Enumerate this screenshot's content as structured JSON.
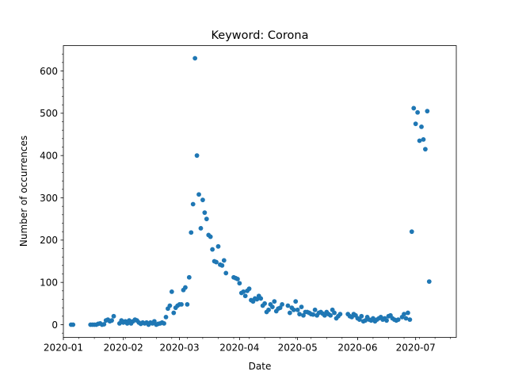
{
  "chart_data": {
    "type": "scatter",
    "title": "Keyword: Corona",
    "xlabel": "Date",
    "ylabel": "Number of occurrences",
    "x_scale": "date",
    "xlim": [
      "2020-01-01",
      "2020-07-22"
    ],
    "ylim": [
      -30,
      660
    ],
    "x_ticks": [
      "2020-01-01",
      "2020-02-01",
      "2020-03-01",
      "2020-04-01",
      "2020-05-01",
      "2020-06-01",
      "2020-07-01"
    ],
    "x_tick_labels": [
      "2020-01",
      "2020-02",
      "2020-03",
      "2020-04",
      "2020-05",
      "2020-06",
      "2020-07"
    ],
    "y_ticks": [
      0,
      100,
      200,
      300,
      400,
      500,
      600
    ],
    "grid": false,
    "marker_color": "#1f77b4",
    "points": [
      {
        "x": "2020-01-05",
        "y": 0
      },
      {
        "x": "2020-01-06",
        "y": 0
      },
      {
        "x": "2020-01-15",
        "y": 0
      },
      {
        "x": "2020-01-16",
        "y": 0
      },
      {
        "x": "2020-01-17",
        "y": 0
      },
      {
        "x": "2020-01-18",
        "y": 0
      },
      {
        "x": "2020-01-19",
        "y": 2
      },
      {
        "x": "2020-01-20",
        "y": 3
      },
      {
        "x": "2020-01-21",
        "y": 0
      },
      {
        "x": "2020-01-22",
        "y": 1
      },
      {
        "x": "2020-01-23",
        "y": 10
      },
      {
        "x": "2020-01-24",
        "y": 12
      },
      {
        "x": "2020-01-25",
        "y": 8
      },
      {
        "x": "2020-01-26",
        "y": 10
      },
      {
        "x": "2020-01-27",
        "y": 20
      },
      {
        "x": "2020-01-30",
        "y": 3
      },
      {
        "x": "2020-01-31",
        "y": 10
      },
      {
        "x": "2020-02-01",
        "y": 5
      },
      {
        "x": "2020-02-02",
        "y": 8
      },
      {
        "x": "2020-02-03",
        "y": 3
      },
      {
        "x": "2020-02-04",
        "y": 10
      },
      {
        "x": "2020-02-05",
        "y": 3
      },
      {
        "x": "2020-02-06",
        "y": 8
      },
      {
        "x": "2020-02-07",
        "y": 12
      },
      {
        "x": "2020-02-08",
        "y": 10
      },
      {
        "x": "2020-02-09",
        "y": 5
      },
      {
        "x": "2020-02-10",
        "y": 2
      },
      {
        "x": "2020-02-11",
        "y": 5
      },
      {
        "x": "2020-02-12",
        "y": 3
      },
      {
        "x": "2020-02-13",
        "y": 5
      },
      {
        "x": "2020-02-14",
        "y": 0
      },
      {
        "x": "2020-02-15",
        "y": 5
      },
      {
        "x": "2020-02-16",
        "y": 3
      },
      {
        "x": "2020-02-17",
        "y": 8
      },
      {
        "x": "2020-02-18",
        "y": 0
      },
      {
        "x": "2020-02-19",
        "y": 2
      },
      {
        "x": "2020-02-20",
        "y": 3
      },
      {
        "x": "2020-02-21",
        "y": 5
      },
      {
        "x": "2020-02-22",
        "y": 3
      },
      {
        "x": "2020-02-23",
        "y": 18
      },
      {
        "x": "2020-02-24",
        "y": 38
      },
      {
        "x": "2020-02-25",
        "y": 45
      },
      {
        "x": "2020-02-26",
        "y": 78
      },
      {
        "x": "2020-02-27",
        "y": 28
      },
      {
        "x": "2020-02-28",
        "y": 40
      },
      {
        "x": "2020-02-29",
        "y": 45
      },
      {
        "x": "2020-03-01",
        "y": 48
      },
      {
        "x": "2020-03-02",
        "y": 48
      },
      {
        "x": "2020-03-03",
        "y": 82
      },
      {
        "x": "2020-03-04",
        "y": 88
      },
      {
        "x": "2020-03-05",
        "y": 48
      },
      {
        "x": "2020-03-06",
        "y": 112
      },
      {
        "x": "2020-03-07",
        "y": 218
      },
      {
        "x": "2020-03-08",
        "y": 285
      },
      {
        "x": "2020-03-09",
        "y": 630
      },
      {
        "x": "2020-03-10",
        "y": 400
      },
      {
        "x": "2020-03-11",
        "y": 308
      },
      {
        "x": "2020-03-12",
        "y": 228
      },
      {
        "x": "2020-03-13",
        "y": 295
      },
      {
        "x": "2020-03-14",
        "y": 265
      },
      {
        "x": "2020-03-15",
        "y": 250
      },
      {
        "x": "2020-03-16",
        "y": 212
      },
      {
        "x": "2020-03-17",
        "y": 208
      },
      {
        "x": "2020-03-18",
        "y": 178
      },
      {
        "x": "2020-03-19",
        "y": 150
      },
      {
        "x": "2020-03-20",
        "y": 148
      },
      {
        "x": "2020-03-21",
        "y": 185
      },
      {
        "x": "2020-03-22",
        "y": 142
      },
      {
        "x": "2020-03-23",
        "y": 140
      },
      {
        "x": "2020-03-24",
        "y": 152
      },
      {
        "x": "2020-03-25",
        "y": 122
      },
      {
        "x": "2020-03-29",
        "y": 112
      },
      {
        "x": "2020-03-30",
        "y": 110
      },
      {
        "x": "2020-03-31",
        "y": 108
      },
      {
        "x": "2020-04-01",
        "y": 98
      },
      {
        "x": "2020-04-02",
        "y": 75
      },
      {
        "x": "2020-04-03",
        "y": 78
      },
      {
        "x": "2020-04-04",
        "y": 68
      },
      {
        "x": "2020-04-05",
        "y": 80
      },
      {
        "x": "2020-04-06",
        "y": 85
      },
      {
        "x": "2020-04-07",
        "y": 58
      },
      {
        "x": "2020-04-08",
        "y": 55
      },
      {
        "x": "2020-04-09",
        "y": 62
      },
      {
        "x": "2020-04-10",
        "y": 60
      },
      {
        "x": "2020-04-11",
        "y": 68
      },
      {
        "x": "2020-04-12",
        "y": 62
      },
      {
        "x": "2020-04-13",
        "y": 45
      },
      {
        "x": "2020-04-14",
        "y": 50
      },
      {
        "x": "2020-04-15",
        "y": 30
      },
      {
        "x": "2020-04-16",
        "y": 35
      },
      {
        "x": "2020-04-17",
        "y": 48
      },
      {
        "x": "2020-04-18",
        "y": 42
      },
      {
        "x": "2020-04-19",
        "y": 55
      },
      {
        "x": "2020-04-20",
        "y": 32
      },
      {
        "x": "2020-04-21",
        "y": 38
      },
      {
        "x": "2020-04-22",
        "y": 40
      },
      {
        "x": "2020-04-23",
        "y": 48
      },
      {
        "x": "2020-04-26",
        "y": 45
      },
      {
        "x": "2020-04-27",
        "y": 28
      },
      {
        "x": "2020-04-28",
        "y": 40
      },
      {
        "x": "2020-04-29",
        "y": 35
      },
      {
        "x": "2020-04-30",
        "y": 55
      },
      {
        "x": "2020-05-01",
        "y": 35
      },
      {
        "x": "2020-05-02",
        "y": 25
      },
      {
        "x": "2020-05-03",
        "y": 42
      },
      {
        "x": "2020-05-04",
        "y": 22
      },
      {
        "x": "2020-05-05",
        "y": 30
      },
      {
        "x": "2020-05-06",
        "y": 30
      },
      {
        "x": "2020-05-07",
        "y": 28
      },
      {
        "x": "2020-05-08",
        "y": 25
      },
      {
        "x": "2020-05-09",
        "y": 24
      },
      {
        "x": "2020-05-10",
        "y": 35
      },
      {
        "x": "2020-05-11",
        "y": 22
      },
      {
        "x": "2020-05-12",
        "y": 28
      },
      {
        "x": "2020-05-13",
        "y": 30
      },
      {
        "x": "2020-05-14",
        "y": 26
      },
      {
        "x": "2020-05-15",
        "y": 22
      },
      {
        "x": "2020-05-16",
        "y": 30
      },
      {
        "x": "2020-05-17",
        "y": 25
      },
      {
        "x": "2020-05-18",
        "y": 22
      },
      {
        "x": "2020-05-19",
        "y": 35
      },
      {
        "x": "2020-05-20",
        "y": 28
      },
      {
        "x": "2020-05-21",
        "y": 15
      },
      {
        "x": "2020-05-22",
        "y": 20
      },
      {
        "x": "2020-05-23",
        "y": 25
      },
      {
        "x": "2020-05-27",
        "y": 25
      },
      {
        "x": "2020-05-28",
        "y": 20
      },
      {
        "x": "2020-05-29",
        "y": 18
      },
      {
        "x": "2020-05-30",
        "y": 25
      },
      {
        "x": "2020-05-31",
        "y": 22
      },
      {
        "x": "2020-06-01",
        "y": 15
      },
      {
        "x": "2020-06-02",
        "y": 12
      },
      {
        "x": "2020-06-03",
        "y": 20
      },
      {
        "x": "2020-06-04",
        "y": 8
      },
      {
        "x": "2020-06-05",
        "y": 10
      },
      {
        "x": "2020-06-06",
        "y": 18
      },
      {
        "x": "2020-06-07",
        "y": 12
      },
      {
        "x": "2020-06-08",
        "y": 10
      },
      {
        "x": "2020-06-09",
        "y": 15
      },
      {
        "x": "2020-06-10",
        "y": 8
      },
      {
        "x": "2020-06-11",
        "y": 12
      },
      {
        "x": "2020-06-12",
        "y": 15
      },
      {
        "x": "2020-06-13",
        "y": 18
      },
      {
        "x": "2020-06-14",
        "y": 12
      },
      {
        "x": "2020-06-15",
        "y": 15
      },
      {
        "x": "2020-06-16",
        "y": 10
      },
      {
        "x": "2020-06-17",
        "y": 20
      },
      {
        "x": "2020-06-18",
        "y": 22
      },
      {
        "x": "2020-06-19",
        "y": 15
      },
      {
        "x": "2020-06-20",
        "y": 12
      },
      {
        "x": "2020-06-21",
        "y": 10
      },
      {
        "x": "2020-06-22",
        "y": 12
      },
      {
        "x": "2020-06-24",
        "y": 18
      },
      {
        "x": "2020-06-25",
        "y": 25
      },
      {
        "x": "2020-06-26",
        "y": 15
      },
      {
        "x": "2020-06-27",
        "y": 28
      },
      {
        "x": "2020-06-28",
        "y": 12
      },
      {
        "x": "2020-06-29",
        "y": 220
      },
      {
        "x": "2020-06-30",
        "y": 512
      },
      {
        "x": "2020-07-01",
        "y": 475
      },
      {
        "x": "2020-07-02",
        "y": 502
      },
      {
        "x": "2020-07-03",
        "y": 435
      },
      {
        "x": "2020-07-04",
        "y": 468
      },
      {
        "x": "2020-07-05",
        "y": 438
      },
      {
        "x": "2020-07-06",
        "y": 415
      },
      {
        "x": "2020-07-07",
        "y": 505
      },
      {
        "x": "2020-07-08",
        "y": 102
      }
    ]
  }
}
